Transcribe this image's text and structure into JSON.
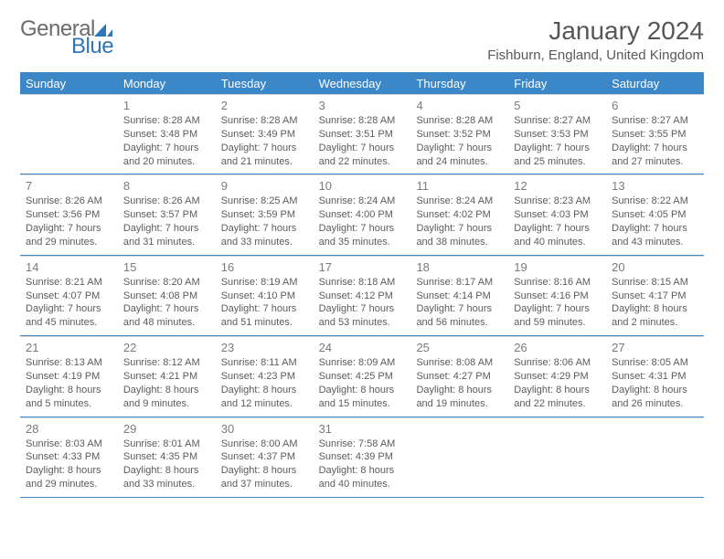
{
  "logo": {
    "general": "General",
    "blue": "Blue"
  },
  "title": "January 2024",
  "subtitle": "Fishburn, England, United Kingdom",
  "colors": {
    "header_bg": "#3b87c8",
    "header_text": "#ffffff",
    "accent": "#3b87c8",
    "body_text": "#5b5c5d",
    "daynum_text": "#7a7b7c",
    "divider": "#d6d7d8",
    "background": "#ffffff"
  },
  "day_headers": [
    "Sunday",
    "Monday",
    "Tuesday",
    "Wednesday",
    "Thursday",
    "Friday",
    "Saturday"
  ],
  "weeks": [
    [
      {
        "num": "",
        "sunrise": "",
        "sunset": "",
        "daylight": ""
      },
      {
        "num": "1",
        "sunrise": "Sunrise: 8:28 AM",
        "sunset": "Sunset: 3:48 PM",
        "daylight": "Daylight: 7 hours and 20 minutes."
      },
      {
        "num": "2",
        "sunrise": "Sunrise: 8:28 AM",
        "sunset": "Sunset: 3:49 PM",
        "daylight": "Daylight: 7 hours and 21 minutes."
      },
      {
        "num": "3",
        "sunrise": "Sunrise: 8:28 AM",
        "sunset": "Sunset: 3:51 PM",
        "daylight": "Daylight: 7 hours and 22 minutes."
      },
      {
        "num": "4",
        "sunrise": "Sunrise: 8:28 AM",
        "sunset": "Sunset: 3:52 PM",
        "daylight": "Daylight: 7 hours and 24 minutes."
      },
      {
        "num": "5",
        "sunrise": "Sunrise: 8:27 AM",
        "sunset": "Sunset: 3:53 PM",
        "daylight": "Daylight: 7 hours and 25 minutes."
      },
      {
        "num": "6",
        "sunrise": "Sunrise: 8:27 AM",
        "sunset": "Sunset: 3:55 PM",
        "daylight": "Daylight: 7 hours and 27 minutes."
      }
    ],
    [
      {
        "num": "7",
        "sunrise": "Sunrise: 8:26 AM",
        "sunset": "Sunset: 3:56 PM",
        "daylight": "Daylight: 7 hours and 29 minutes."
      },
      {
        "num": "8",
        "sunrise": "Sunrise: 8:26 AM",
        "sunset": "Sunset: 3:57 PM",
        "daylight": "Daylight: 7 hours and 31 minutes."
      },
      {
        "num": "9",
        "sunrise": "Sunrise: 8:25 AM",
        "sunset": "Sunset: 3:59 PM",
        "daylight": "Daylight: 7 hours and 33 minutes."
      },
      {
        "num": "10",
        "sunrise": "Sunrise: 8:24 AM",
        "sunset": "Sunset: 4:00 PM",
        "daylight": "Daylight: 7 hours and 35 minutes."
      },
      {
        "num": "11",
        "sunrise": "Sunrise: 8:24 AM",
        "sunset": "Sunset: 4:02 PM",
        "daylight": "Daylight: 7 hours and 38 minutes."
      },
      {
        "num": "12",
        "sunrise": "Sunrise: 8:23 AM",
        "sunset": "Sunset: 4:03 PM",
        "daylight": "Daylight: 7 hours and 40 minutes."
      },
      {
        "num": "13",
        "sunrise": "Sunrise: 8:22 AM",
        "sunset": "Sunset: 4:05 PM",
        "daylight": "Daylight: 7 hours and 43 minutes."
      }
    ],
    [
      {
        "num": "14",
        "sunrise": "Sunrise: 8:21 AM",
        "sunset": "Sunset: 4:07 PM",
        "daylight": "Daylight: 7 hours and 45 minutes."
      },
      {
        "num": "15",
        "sunrise": "Sunrise: 8:20 AM",
        "sunset": "Sunset: 4:08 PM",
        "daylight": "Daylight: 7 hours and 48 minutes."
      },
      {
        "num": "16",
        "sunrise": "Sunrise: 8:19 AM",
        "sunset": "Sunset: 4:10 PM",
        "daylight": "Daylight: 7 hours and 51 minutes."
      },
      {
        "num": "17",
        "sunrise": "Sunrise: 8:18 AM",
        "sunset": "Sunset: 4:12 PM",
        "daylight": "Daylight: 7 hours and 53 minutes."
      },
      {
        "num": "18",
        "sunrise": "Sunrise: 8:17 AM",
        "sunset": "Sunset: 4:14 PM",
        "daylight": "Daylight: 7 hours and 56 minutes."
      },
      {
        "num": "19",
        "sunrise": "Sunrise: 8:16 AM",
        "sunset": "Sunset: 4:16 PM",
        "daylight": "Daylight: 7 hours and 59 minutes."
      },
      {
        "num": "20",
        "sunrise": "Sunrise: 8:15 AM",
        "sunset": "Sunset: 4:17 PM",
        "daylight": "Daylight: 8 hours and 2 minutes."
      }
    ],
    [
      {
        "num": "21",
        "sunrise": "Sunrise: 8:13 AM",
        "sunset": "Sunset: 4:19 PM",
        "daylight": "Daylight: 8 hours and 5 minutes."
      },
      {
        "num": "22",
        "sunrise": "Sunrise: 8:12 AM",
        "sunset": "Sunset: 4:21 PM",
        "daylight": "Daylight: 8 hours and 9 minutes."
      },
      {
        "num": "23",
        "sunrise": "Sunrise: 8:11 AM",
        "sunset": "Sunset: 4:23 PM",
        "daylight": "Daylight: 8 hours and 12 minutes."
      },
      {
        "num": "24",
        "sunrise": "Sunrise: 8:09 AM",
        "sunset": "Sunset: 4:25 PM",
        "daylight": "Daylight: 8 hours and 15 minutes."
      },
      {
        "num": "25",
        "sunrise": "Sunrise: 8:08 AM",
        "sunset": "Sunset: 4:27 PM",
        "daylight": "Daylight: 8 hours and 19 minutes."
      },
      {
        "num": "26",
        "sunrise": "Sunrise: 8:06 AM",
        "sunset": "Sunset: 4:29 PM",
        "daylight": "Daylight: 8 hours and 22 minutes."
      },
      {
        "num": "27",
        "sunrise": "Sunrise: 8:05 AM",
        "sunset": "Sunset: 4:31 PM",
        "daylight": "Daylight: 8 hours and 26 minutes."
      }
    ],
    [
      {
        "num": "28",
        "sunrise": "Sunrise: 8:03 AM",
        "sunset": "Sunset: 4:33 PM",
        "daylight": "Daylight: 8 hours and 29 minutes."
      },
      {
        "num": "29",
        "sunrise": "Sunrise: 8:01 AM",
        "sunset": "Sunset: 4:35 PM",
        "daylight": "Daylight: 8 hours and 33 minutes."
      },
      {
        "num": "30",
        "sunrise": "Sunrise: 8:00 AM",
        "sunset": "Sunset: 4:37 PM",
        "daylight": "Daylight: 8 hours and 37 minutes."
      },
      {
        "num": "31",
        "sunrise": "Sunrise: 7:58 AM",
        "sunset": "Sunset: 4:39 PM",
        "daylight": "Daylight: 8 hours and 40 minutes."
      },
      {
        "num": "",
        "sunrise": "",
        "sunset": "",
        "daylight": ""
      },
      {
        "num": "",
        "sunrise": "",
        "sunset": "",
        "daylight": ""
      },
      {
        "num": "",
        "sunrise": "",
        "sunset": "",
        "daylight": ""
      }
    ]
  ]
}
